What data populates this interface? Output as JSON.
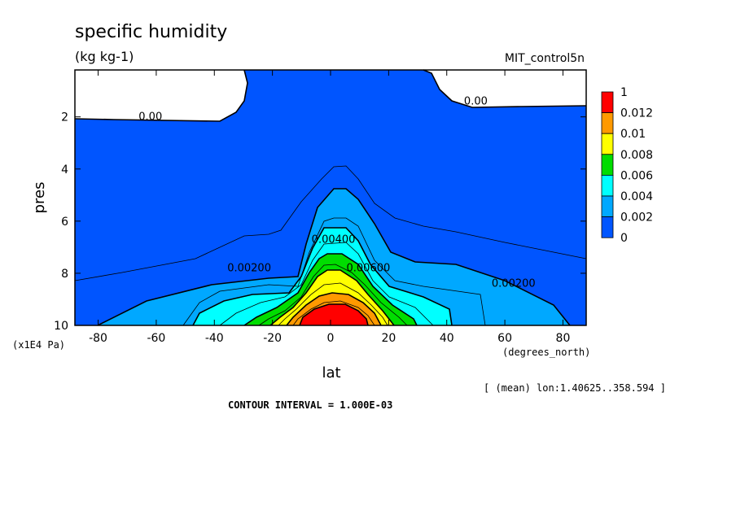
{
  "chart_data": {
    "type": "contour",
    "title": "specific humidity",
    "units": "(kg kg-1)",
    "dataset": "MIT_control5n",
    "xlabel": "lat",
    "xunits": "(degrees_north)",
    "ylabel": "pres",
    "yunits": "(x1E4 Pa)",
    "xlim": [
      -88,
      88
    ],
    "ylim": [
      0.2,
      10
    ],
    "y_inverted": true,
    "x_ticks": [
      -80,
      -60,
      -40,
      -20,
      0,
      20,
      40,
      60,
      80
    ],
    "y_ticks": [
      2,
      4,
      6,
      8,
      10
    ],
    "x_tick_labels": [
      "-80",
      "-60",
      "-40",
      "-20",
      "0",
      "20",
      "40",
      "60",
      "80"
    ],
    "y_tick_labels": [
      "2",
      "4",
      "6",
      "8",
      "10"
    ],
    "contour_interval_text": "CONTOUR INTERVAL = 1.000E-03",
    "mean_note": "[ (mean) lon:1.40625..358.594 ]",
    "legend": {
      "placement": "right",
      "labels": [
        "1",
        "0.012",
        "0.01",
        "0.008",
        "0.006",
        "0.004",
        "0.002",
        "0"
      ],
      "colors": [
        "#ff0000",
        "#ff9900",
        "#ffff00",
        "#00dd00",
        "#00ffff",
        "#00a8ff",
        "#0055ff"
      ]
    },
    "contour_labels": [
      {
        "text": "0.00",
        "x": -62,
        "y": 2.0
      },
      {
        "text": "0.00",
        "x": 50,
        "y": 1.4
      },
      {
        "text": "0.00200",
        "x": -28,
        "y": 7.8
      },
      {
        "text": "0.00200",
        "x": 63,
        "y": 8.4
      },
      {
        "text": "0.00400",
        "x": 1,
        "y": 6.7
      },
      {
        "text": "0.00600",
        "x": 13,
        "y": 7.8
      }
    ]
  }
}
